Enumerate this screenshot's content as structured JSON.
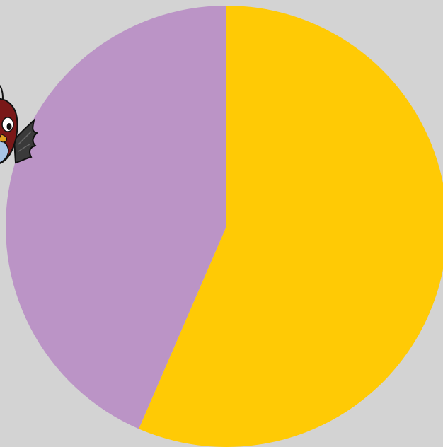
{
  "chart_data": {
    "type": "pie",
    "start_angle_deg": 0,
    "direction": "clockwise",
    "slices": [
      {
        "value": 56.5,
        "color": "#ffca05"
      },
      {
        "value": 43.5,
        "color": "#bb94c6"
      }
    ]
  },
  "colors": {
    "background": "#d3d3d3"
  },
  "decoration": {
    "icon": "cartoon-bird-icon"
  }
}
